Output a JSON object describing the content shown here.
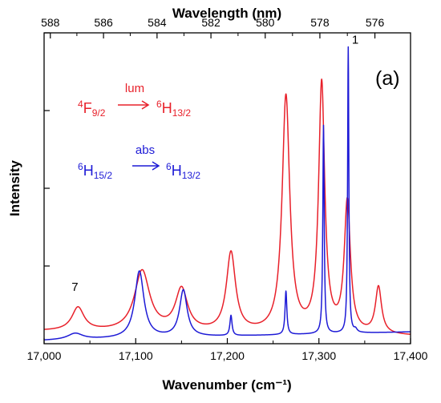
{
  "chart_data": {
    "type": "line",
    "panel_label": "(a)",
    "xlabel": "Wavenumber (cm⁻¹)",
    "x2label": "Wavelength (nm)",
    "ylabel": "Intensity",
    "xlim": [
      17000,
      17400
    ],
    "ylim": [
      0,
      1.0
    ],
    "x_ticks": [
      17000,
      17100,
      17200,
      17300,
      17400
    ],
    "x_tick_labels": [
      "17,000",
      "17,100",
      "17,200",
      "17,300",
      "17,400"
    ],
    "x2_ticks": [
      588,
      586,
      584,
      582,
      580,
      578,
      576
    ],
    "y_ticks_count": 4,
    "colors": {
      "lum": "#e8202a",
      "abs": "#1d1ad6"
    },
    "series": [
      {
        "key": "lum",
        "color": "#e8202a",
        "baseline": 0.04,
        "baseline_slope": -4e-05,
        "peaks": [
          {
            "x": 17037,
            "height": 0.075,
            "width": 8
          },
          {
            "x": 17107,
            "height": 0.195,
            "width": 10
          },
          {
            "x": 17150,
            "height": 0.135,
            "width": 8
          },
          {
            "x": 17204,
            "height": 0.255,
            "width": 6
          },
          {
            "x": 17264,
            "height": 0.76,
            "width": 5
          },
          {
            "x": 17303,
            "height": 0.8,
            "width": 4
          },
          {
            "x": 17331,
            "height": 0.42,
            "width": 4
          },
          {
            "x": 17365,
            "height": 0.15,
            "width": 4
          }
        ]
      },
      {
        "key": "abs",
        "color": "#1d1ad6",
        "baseline": 0.01,
        "baseline_slope": 7e-05,
        "peaks": [
          {
            "x": 17034,
            "height": 0.02,
            "width": 10
          },
          {
            "x": 17104,
            "height": 0.215,
            "width": 6
          },
          {
            "x": 17152,
            "height": 0.15,
            "width": 5
          },
          {
            "x": 17204,
            "height": 0.065,
            "width": 1.4
          },
          {
            "x": 17264,
            "height": 0.14,
            "width": 1.2
          },
          {
            "x": 17305,
            "height": 0.67,
            "width": 0.9
          },
          {
            "x": 17332,
            "height": 0.92,
            "width": 0.8
          },
          {
            "x": 17340,
            "height": 0.01,
            "width": 2
          }
        ]
      }
    ],
    "annotations": [
      {
        "label": "1",
        "x": 17336,
        "y": 0.965
      },
      {
        "label": "7",
        "x": 17030,
        "y": 0.17
      }
    ]
  },
  "legend": {
    "lum": {
      "label": "lum",
      "from_sup": "4",
      "from_main": "F",
      "from_sub": "9/2",
      "to_sup": "6",
      "to_main": "H",
      "to_sub": "13/2"
    },
    "abs": {
      "label": "abs",
      "from_sup": "6",
      "from_main": "H",
      "from_sub": "15/2",
      "to_sup": "6",
      "to_main": "H",
      "to_sub": "13/2"
    }
  }
}
